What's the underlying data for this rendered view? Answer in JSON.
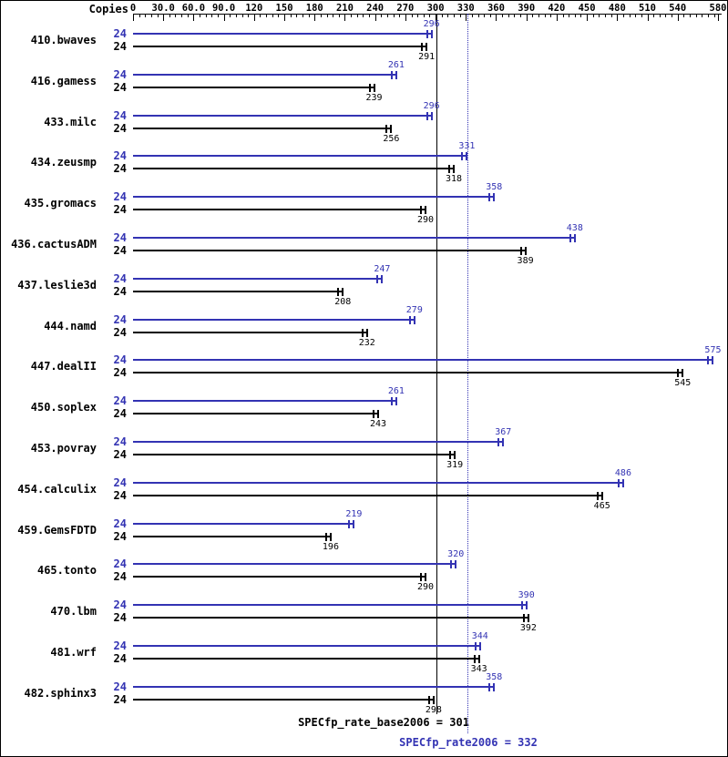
{
  "chart_data": {
    "type": "bar",
    "orientation": "horizontal",
    "copies_header": "Copies",
    "xlim": [
      0,
      580
    ],
    "x_minor_step": 6,
    "grid": false,
    "legend_position": "none",
    "x_ticks": [
      {
        "label": "0",
        "value": 0
      },
      {
        "label": "30.0",
        "value": 30
      },
      {
        "label": "60.0",
        "value": 60
      },
      {
        "label": "90.0",
        "value": 90
      },
      {
        "label": "120",
        "value": 120
      },
      {
        "label": "150",
        "value": 150
      },
      {
        "label": "180",
        "value": 180
      },
      {
        "label": "210",
        "value": 210
      },
      {
        "label": "240",
        "value": 240
      },
      {
        "label": "270",
        "value": 270
      },
      {
        "label": "300",
        "value": 300
      },
      {
        "label": "330",
        "value": 330
      },
      {
        "label": "360",
        "value": 360
      },
      {
        "label": "390",
        "value": 390
      },
      {
        "label": "420",
        "value": 420
      },
      {
        "label": "450",
        "value": 450
      },
      {
        "label": "480",
        "value": 480
      },
      {
        "label": "510",
        "value": 510
      },
      {
        "label": "540",
        "value": 540
      },
      {
        "label": "580",
        "value": 580
      }
    ],
    "benchmarks": [
      {
        "name": "410.bwaves",
        "copies": 24,
        "peak": 296,
        "base": 291
      },
      {
        "name": "416.gamess",
        "copies": 24,
        "peak": 261,
        "base": 239
      },
      {
        "name": "433.milc",
        "copies": 24,
        "peak": 296,
        "base": 256
      },
      {
        "name": "434.zeusmp",
        "copies": 24,
        "peak": 331,
        "base": 318
      },
      {
        "name": "435.gromacs",
        "copies": 24,
        "peak": 358,
        "base": 290
      },
      {
        "name": "436.cactusADM",
        "copies": 24,
        "peak": 438,
        "base": 389
      },
      {
        "name": "437.leslie3d",
        "copies": 24,
        "peak": 247,
        "base": 208
      },
      {
        "name": "444.namd",
        "copies": 24,
        "peak": 279,
        "base": 232
      },
      {
        "name": "447.dealII",
        "copies": 24,
        "peak": 575,
        "base": 545
      },
      {
        "name": "450.soplex",
        "copies": 24,
        "peak": 261,
        "base": 243
      },
      {
        "name": "453.povray",
        "copies": 24,
        "peak": 367,
        "base": 319
      },
      {
        "name": "454.calculix",
        "copies": 24,
        "peak": 486,
        "base": 465
      },
      {
        "name": "459.GemsFDTD",
        "copies": 24,
        "peak": 219,
        "base": 196
      },
      {
        "name": "465.tonto",
        "copies": 24,
        "peak": 320,
        "base": 290
      },
      {
        "name": "470.lbm",
        "copies": 24,
        "peak": 390,
        "base": 392
      },
      {
        "name": "481.wrf",
        "copies": 24,
        "peak": 344,
        "base": 343
      },
      {
        "name": "482.sphinx3",
        "copies": 24,
        "peak": 358,
        "base": 298
      }
    ],
    "base_line": {
      "label": "SPECfp_rate_base2006 = 301",
      "value": 301
    },
    "peak_line": {
      "label": "SPECfp_rate2006 = 332",
      "value": 332
    },
    "colors": {
      "peak": "#3333b3",
      "base": "#000000"
    }
  }
}
